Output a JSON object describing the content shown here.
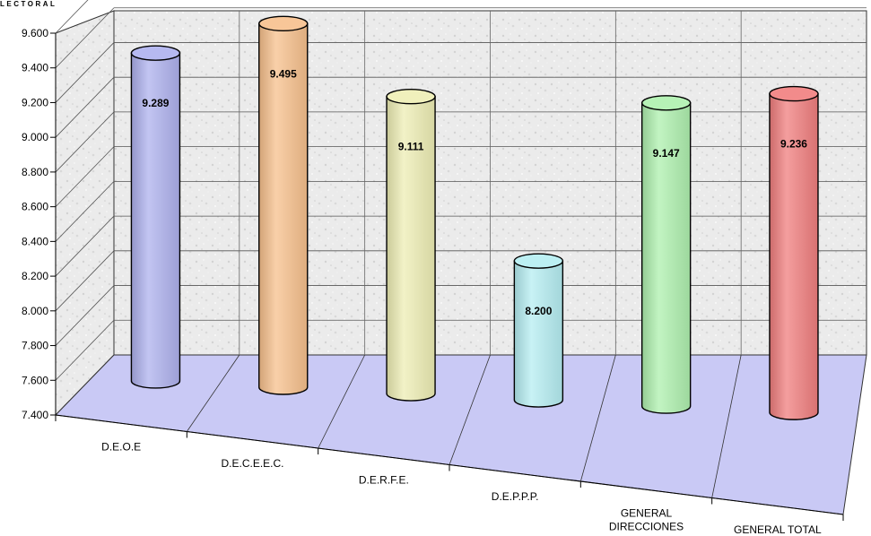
{
  "chart_data": {
    "type": "bar",
    "style": "3d-cylinder",
    "title": "LECTORAL",
    "categories": [
      [
        "D.E.O.E"
      ],
      [
        "D.E.C.E.E.C."
      ],
      [
        "D.E.R.F.E."
      ],
      [
        "D.E.P.P.P."
      ],
      [
        "GENERAL",
        "DIRECCIONES"
      ],
      [
        "GENERAL TOTAL"
      ]
    ],
    "values": [
      9.289,
      9.495,
      9.111,
      8.2,
      9.147,
      9.236
    ],
    "value_labels": [
      "9.289",
      "9.495",
      "9.111",
      "8.200",
      "9.147",
      "9.236"
    ],
    "colors": [
      "#aeb1ee",
      "#f7c08c",
      "#eeeeb4",
      "#b5eef2",
      "#aef0ae",
      "#f07e7e"
    ],
    "ylim": [
      7.4,
      9.6
    ],
    "yticks": [
      "7.400",
      "7.600",
      "7.800",
      "8.000",
      "8.200",
      "8.400",
      "8.600",
      "8.800",
      "9.000",
      "9.200",
      "9.400",
      "9.600"
    ],
    "grid": true,
    "legend": "none",
    "wall_color": "#ebebeb",
    "floor_color": "#c9c9f5"
  }
}
